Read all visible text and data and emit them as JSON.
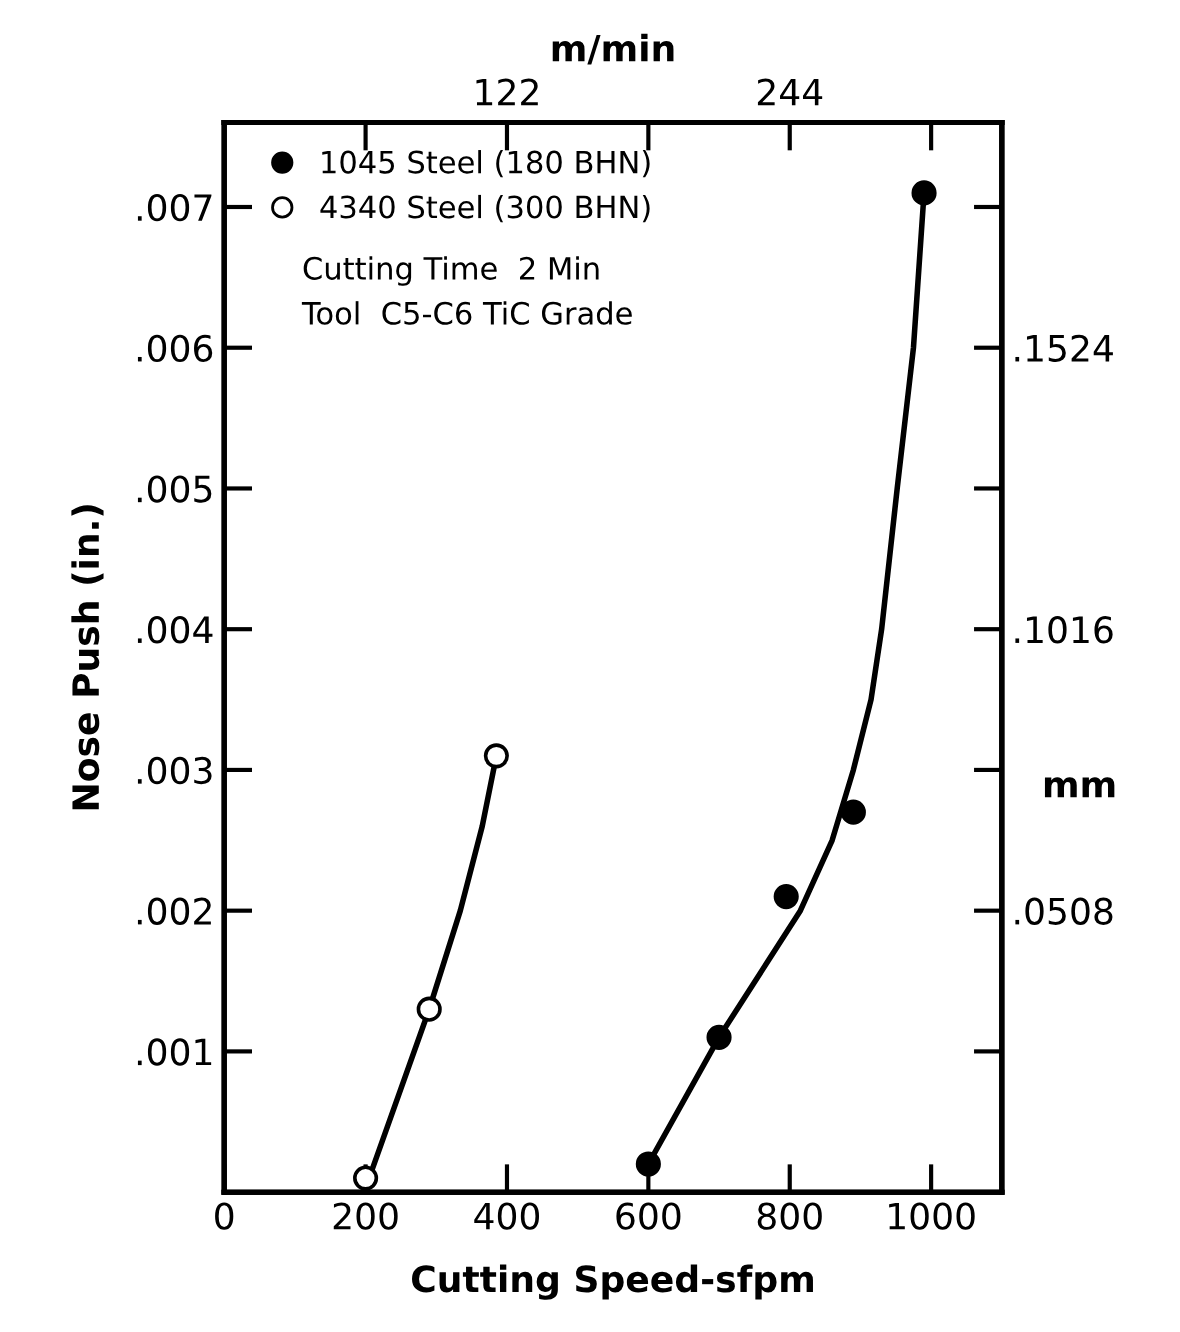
{
  "chart_data": {
    "type": "scatter",
    "xlabel": "Cutting Speed-sfpm",
    "ylabel": "Nose Push (in.)",
    "x2label": "m/min",
    "y2label": "mm",
    "xlim": [
      0,
      1100
    ],
    "xticks": [
      0,
      200,
      400,
      600,
      800,
      1000
    ],
    "ylim": [
      0,
      0.0076
    ],
    "yticks": [
      {
        "value": 0.001,
        "label": ".001"
      },
      {
        "value": 0.002,
        "label": ".002"
      },
      {
        "value": 0.003,
        "label": ".003"
      },
      {
        "value": 0.004,
        "label": ".004"
      },
      {
        "value": 0.005,
        "label": ".005"
      },
      {
        "value": 0.006,
        "label": ".006"
      },
      {
        "value": 0.007,
        "label": ".007"
      }
    ],
    "x2lim": [
      0,
      335.28
    ],
    "x2ticks": [
      {
        "value": 60.96,
        "label": null
      },
      {
        "value": 121.92,
        "label": "122"
      },
      {
        "value": 182.88,
        "label": null
      },
      {
        "value": 243.84,
        "label": "244"
      },
      {
        "value": 304.8,
        "label": null
      }
    ],
    "y2lim": [
      0,
      0.19304
    ],
    "y2ticks": [
      {
        "value": 0.0254,
        "label": null
      },
      {
        "value": 0.0508,
        "label": ".0508"
      },
      {
        "value": 0.0762,
        "label": null
      },
      {
        "value": 0.1016,
        "label": ".1016"
      },
      {
        "value": 0.127,
        "label": null
      },
      {
        "value": 0.1524,
        "label": ".1524"
      },
      {
        "value": 0.1778,
        "label": null
      }
    ],
    "legend": "top left",
    "grid": false,
    "annotations": [
      "Cutting Time  2 Min",
      "Tool  C5-C6 TiC Grade"
    ],
    "series": [
      {
        "marker": "circle",
        "name": "1045 Steel (180 BHN)",
        "color": "#000000",
        "x": [
          600,
          700,
          795,
          890,
          990
        ],
        "values": [
          0.0002,
          0.0011,
          0.0021,
          0.0027,
          0.0071
        ]
      },
      {
        "marker": "circle",
        "name": "4340 Steel (300 BHN)",
        "color": "#ffffff",
        "x": [
          200,
          290,
          385
        ],
        "values": [
          0.0001,
          0.0013,
          0.0031
        ]
      },
      {
        "type": "line",
        "marker": "none",
        "color": "#000000",
        "x": [
          600,
          700,
          815,
          860,
          890,
          915,
          930,
          952,
          975,
          990
        ],
        "values": [
          0.0002,
          0.0011,
          0.002,
          0.0025,
          0.003,
          0.0035,
          0.004,
          0.005,
          0.006,
          0.0071
        ]
      },
      {
        "type": "line",
        "marker": "none",
        "color": "#000000",
        "x": [
          205,
          290,
          334,
          365,
          385
        ],
        "values": [
          0.0001,
          0.0013,
          0.002,
          0.0026,
          0.0031
        ]
      }
    ]
  }
}
